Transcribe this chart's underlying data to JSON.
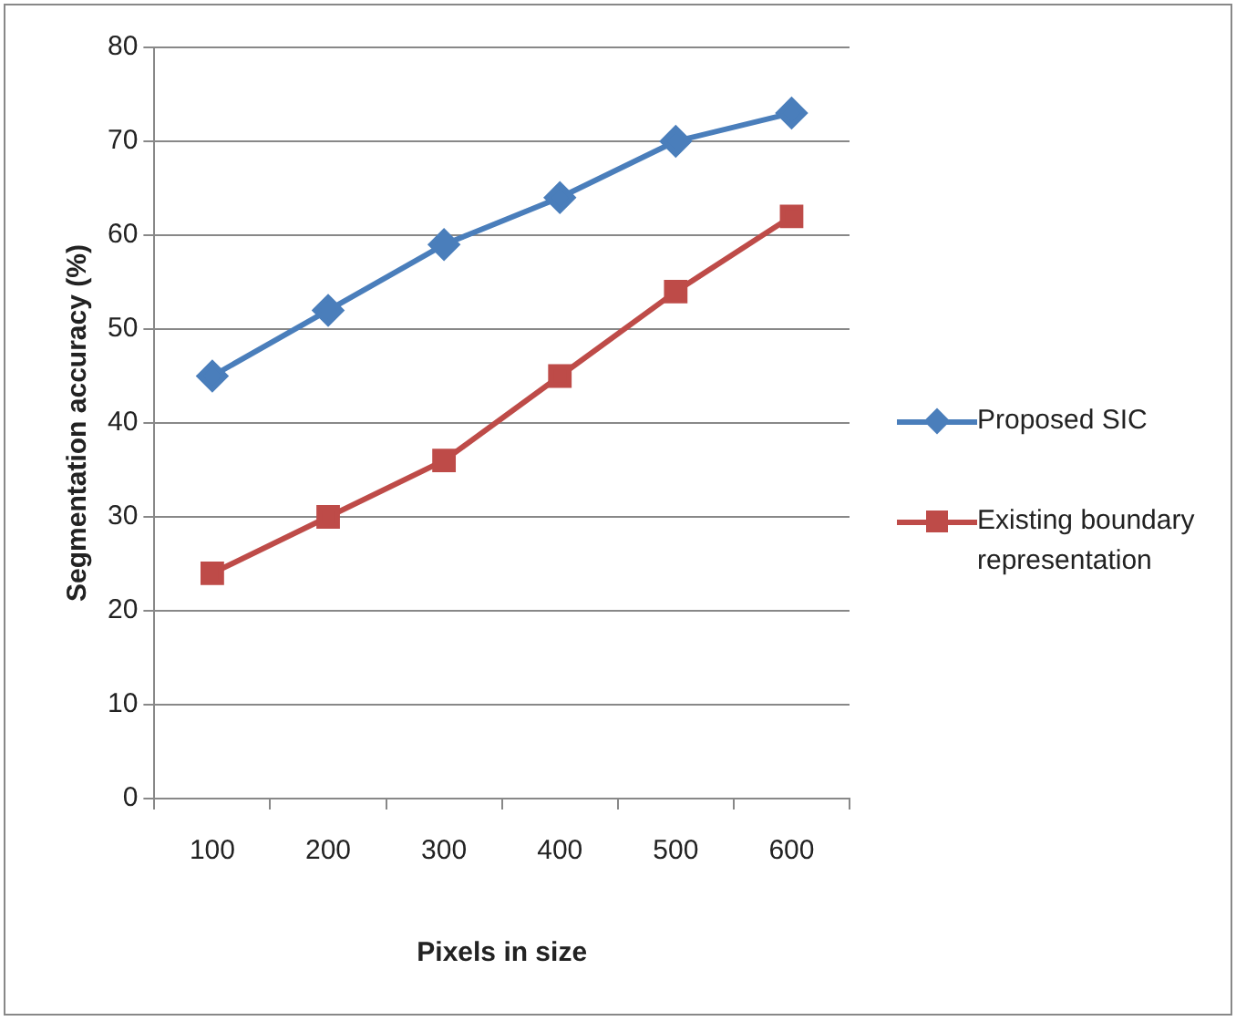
{
  "chart_data": {
    "type": "line",
    "xlabel": "Pixels in size",
    "ylabel": "Segmentation accuracy (%)",
    "categories": [
      "100",
      "200",
      "300",
      "400",
      "500",
      "600"
    ],
    "series": [
      {
        "name": "Proposed SIC",
        "color": "#4a7ebb",
        "marker": "diamond",
        "values": [
          45,
          52,
          59,
          64,
          70,
          73
        ]
      },
      {
        "name": "Existing boundary representation",
        "color": "#be4b48",
        "marker": "square",
        "values": [
          24,
          30,
          36,
          45,
          54,
          62
        ]
      }
    ],
    "ylim": [
      0,
      80
    ],
    "yticks": [
      0,
      10,
      20,
      30,
      40,
      50,
      60,
      70,
      80
    ],
    "grid": "y",
    "legend": "right"
  }
}
